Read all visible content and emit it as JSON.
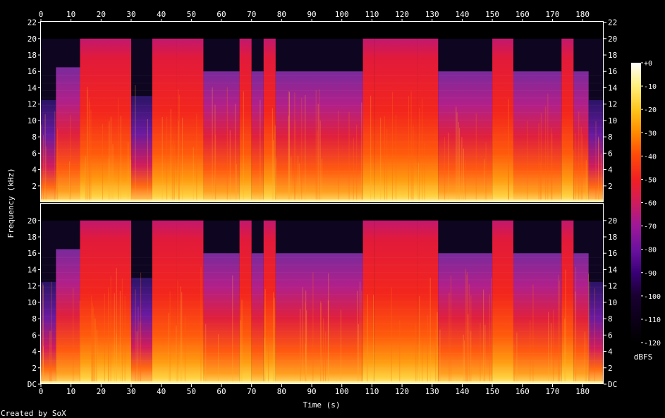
{
  "chart_data": {
    "type": "heatmap",
    "title": "",
    "xlabel": "Time (s)",
    "ylabel": "Frequency (kHz)",
    "footer": "Created by SoX",
    "xlim": [
      0,
      187
    ],
    "ylim_khz": [
      0,
      22.05
    ],
    "x_ticks": [
      "0",
      "10",
      "20",
      "30",
      "40",
      "50",
      "60",
      "70",
      "80",
      "90",
      "100",
      "110",
      "120",
      "130",
      "140",
      "150",
      "160",
      "170",
      "180"
    ],
    "x_tick_values": [
      0,
      10,
      20,
      30,
      40,
      50,
      60,
      70,
      80,
      90,
      100,
      110,
      120,
      130,
      140,
      150,
      160,
      170,
      180
    ],
    "y_ticks_top": [
      "2",
      "4",
      "6",
      "8",
      "10",
      "12",
      "14",
      "16",
      "18",
      "20",
      "22"
    ],
    "y_ticks_bottom": [
      "DC",
      "2",
      "4",
      "6",
      "8",
      "10",
      "12",
      "14",
      "16",
      "18",
      "20"
    ],
    "y_tick_values_top": [
      2,
      4,
      6,
      8,
      10,
      12,
      14,
      16,
      18,
      20,
      22
    ],
    "y_tick_values_bottom": [
      0,
      2,
      4,
      6,
      8,
      10,
      12,
      14,
      16,
      18,
      20
    ],
    "channels": [
      {
        "name": "",
        "index": 1
      },
      {
        "name": "",
        "index": 2
      }
    ],
    "colorbar": {
      "label": "dBFS",
      "ticks": [
        "+0",
        "-10",
        "-20",
        "-30",
        "-40",
        "-50",
        "-60",
        "-70",
        "-80",
        "-90",
        "-100",
        "-110",
        "-120"
      ],
      "tick_values": [
        0,
        -10,
        -20,
        -30,
        -40,
        -50,
        -60,
        -70,
        -80,
        -90,
        -100,
        -110,
        -120
      ],
      "range": [
        -120,
        0
      ],
      "colors": [
        "#000000",
        "#1a0033",
        "#3a0077",
        "#6a11a0",
        "#a01898",
        "#d01c5c",
        "#f01f24",
        "#ff4a08",
        "#ff8a00",
        "#ffc41a",
        "#fff080",
        "#ffffff"
      ]
    },
    "segments_s": [
      {
        "start": 0,
        "end": 5,
        "top_khz": 12.5,
        "level": "quiet"
      },
      {
        "start": 5,
        "end": 13,
        "top_khz": 16.5,
        "level": "medium"
      },
      {
        "start": 13,
        "end": 30,
        "top_khz": 20,
        "level": "loud"
      },
      {
        "start": 30,
        "end": 37,
        "top_khz": 13,
        "level": "quiet"
      },
      {
        "start": 37,
        "end": 45,
        "top_khz": 20,
        "level": "loud"
      },
      {
        "start": 45,
        "end": 54,
        "top_khz": 20,
        "level": "loud"
      },
      {
        "start": 54,
        "end": 66,
        "top_khz": 16,
        "level": "medium"
      },
      {
        "start": 66,
        "end": 70,
        "top_khz": 20,
        "level": "loud"
      },
      {
        "start": 70,
        "end": 74,
        "top_khz": 16,
        "level": "medium"
      },
      {
        "start": 74,
        "end": 78,
        "top_khz": 20,
        "level": "loud"
      },
      {
        "start": 78,
        "end": 107,
        "top_khz": 16,
        "level": "medium"
      },
      {
        "start": 107,
        "end": 111,
        "top_khz": 20,
        "level": "loud"
      },
      {
        "start": 111,
        "end": 125,
        "top_khz": 20,
        "level": "loud"
      },
      {
        "start": 125,
        "end": 132,
        "top_khz": 20,
        "level": "loud"
      },
      {
        "start": 132,
        "end": 150,
        "top_khz": 16,
        "level": "medium"
      },
      {
        "start": 150,
        "end": 157,
        "top_khz": 20,
        "level": "loud"
      },
      {
        "start": 157,
        "end": 173,
        "top_khz": 16,
        "level": "medium"
      },
      {
        "start": 173,
        "end": 177,
        "top_khz": 20,
        "level": "loud"
      },
      {
        "start": 177,
        "end": 182,
        "top_khz": 16,
        "level": "medium"
      },
      {
        "start": 182,
        "end": 187,
        "top_khz": 12.5,
        "level": "quiet"
      }
    ]
  }
}
